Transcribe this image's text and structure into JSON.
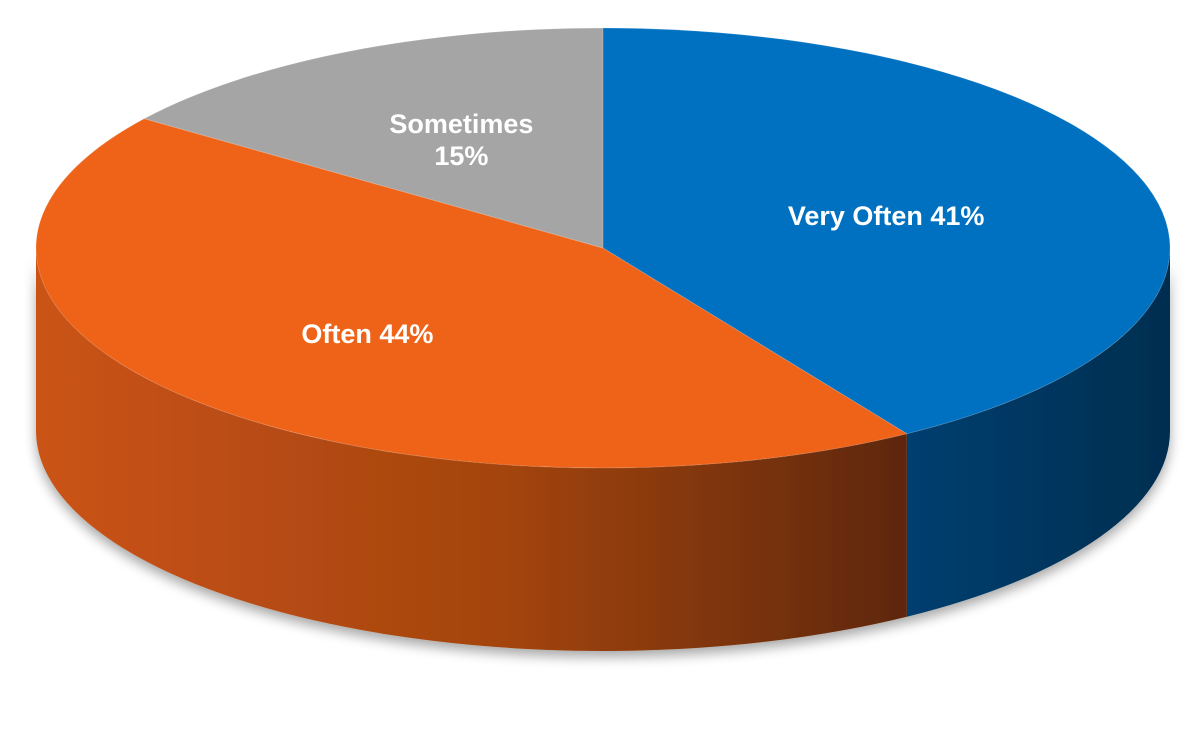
{
  "chart_data": {
    "type": "pie",
    "style": "3d",
    "start": "top",
    "direction": "clockwise",
    "slices": [
      {
        "label": "Very Often",
        "value": 41,
        "display": "Very Often 41%",
        "color": "#0070C0",
        "side_color": "#003A66"
      },
      {
        "label": "Often",
        "value": 44,
        "display": "Often 44%",
        "color": "#EE6318",
        "side_color": "#A6440E"
      },
      {
        "label": "Sometimes",
        "value": 15,
        "display": "Sometimes\n15%",
        "color": "#A5A5A5",
        "side_color": "#6E6E6E"
      }
    ]
  }
}
